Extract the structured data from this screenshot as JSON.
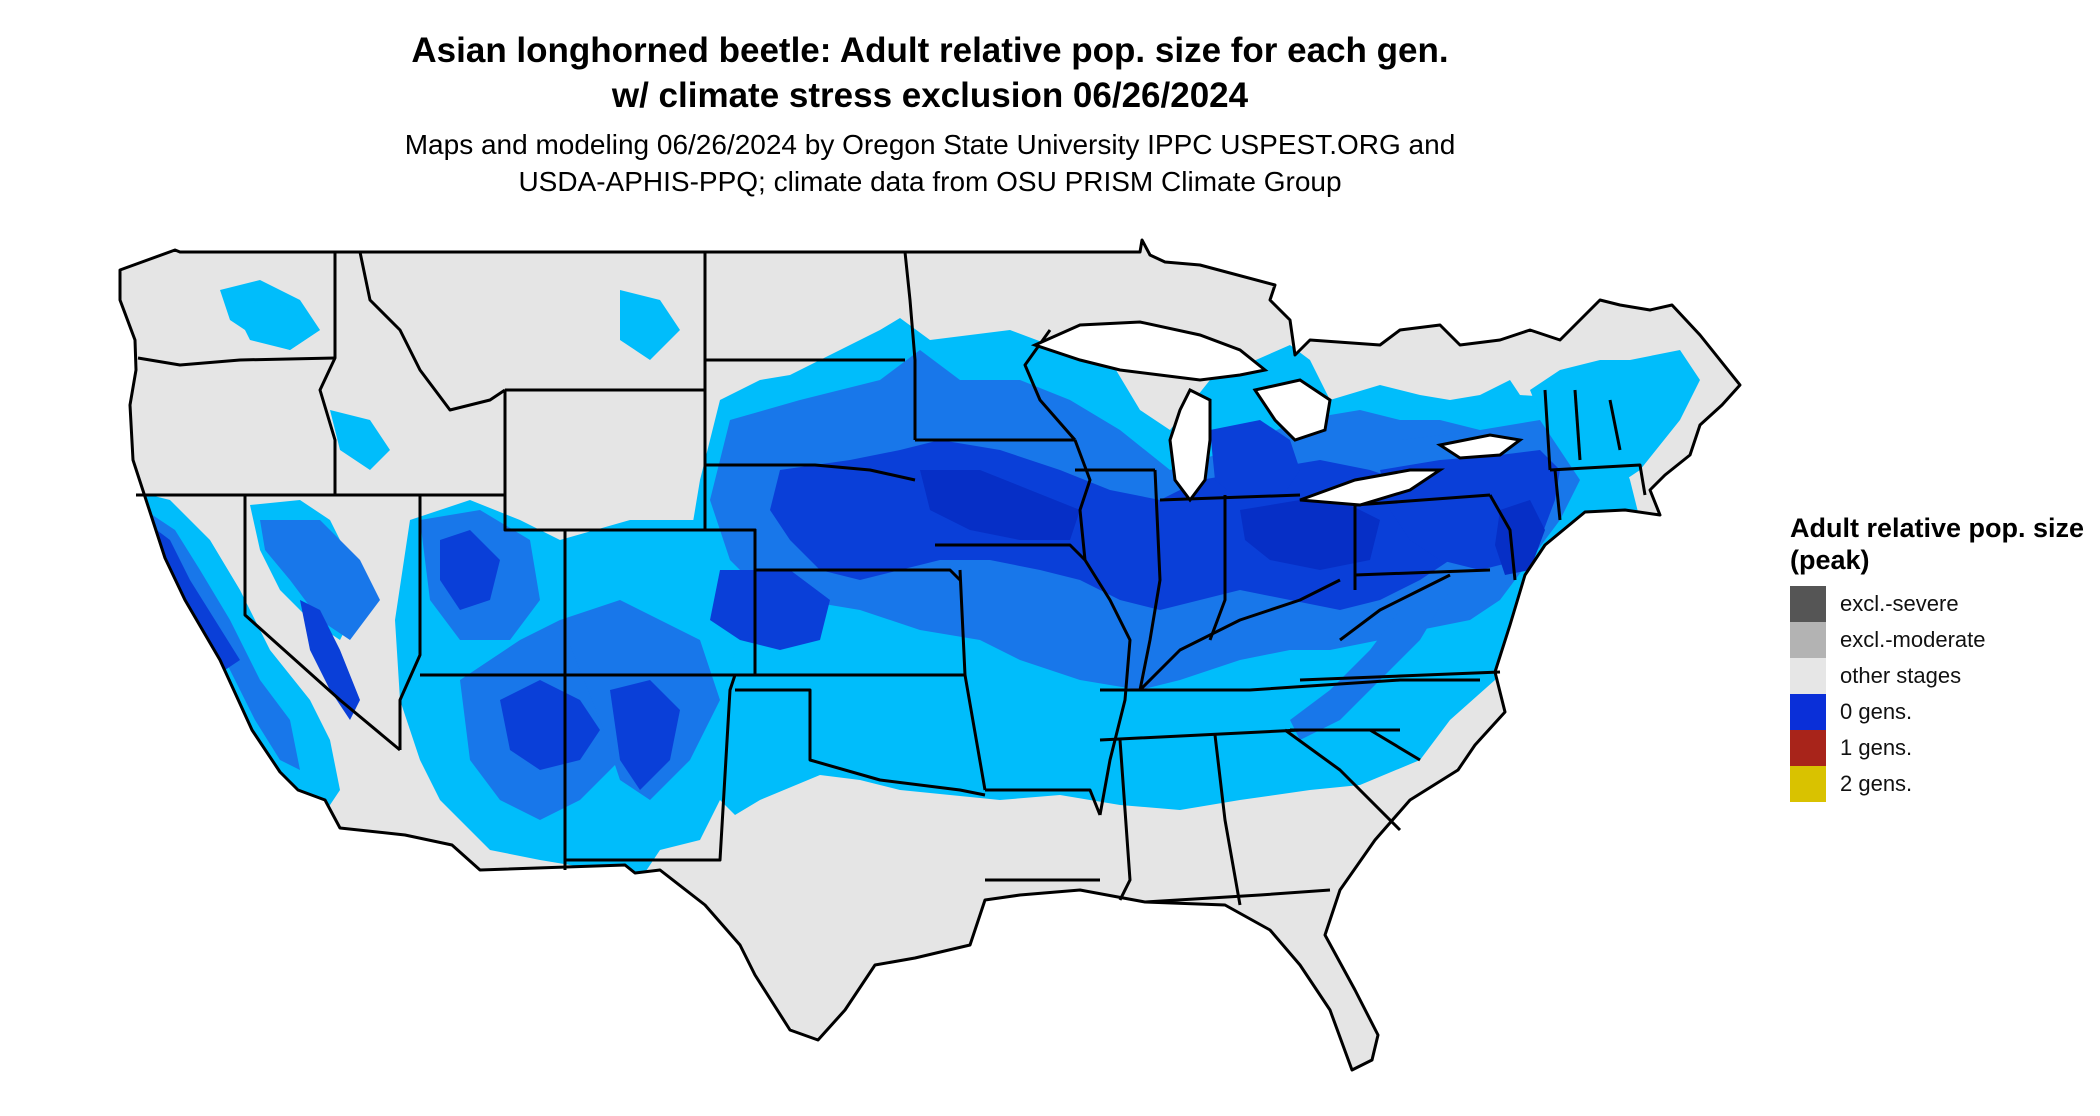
{
  "title_line1": "Asian longhorned beetle: Adult relative pop. size for each gen.",
  "title_line2": "w/ climate stress exclusion 06/26/2024",
  "subtitle_line1": "Maps and modeling 06/26/2024 by Oregon State University IPPC USPEST.ORG and",
  "subtitle_line2": "USDA-APHIS-PPQ; climate data from OSU PRISM Climate Group",
  "legend": {
    "title": "Adult relative pop. size (peak)",
    "items": [
      {
        "label": "excl.-severe",
        "color": "#555555"
      },
      {
        "label": "excl.-moderate",
        "color": "#b3b3b3"
      },
      {
        "label": "other stages",
        "color": "#e6e6e6"
      },
      {
        "label": "0 gens.",
        "color": "#0a2fd8"
      },
      {
        "label": "1 gens.",
        "color": "#a8241a"
      },
      {
        "label": "2 gens.",
        "color": "#d9c200"
      }
    ]
  },
  "map_colors": {
    "land": "#e5e5e5",
    "light_blue": "#00bdfb",
    "mid_blue": "#1877ea",
    "dark_blue": "#0a3fd8",
    "deep_blue": "#062fc6",
    "border": "#000000"
  }
}
